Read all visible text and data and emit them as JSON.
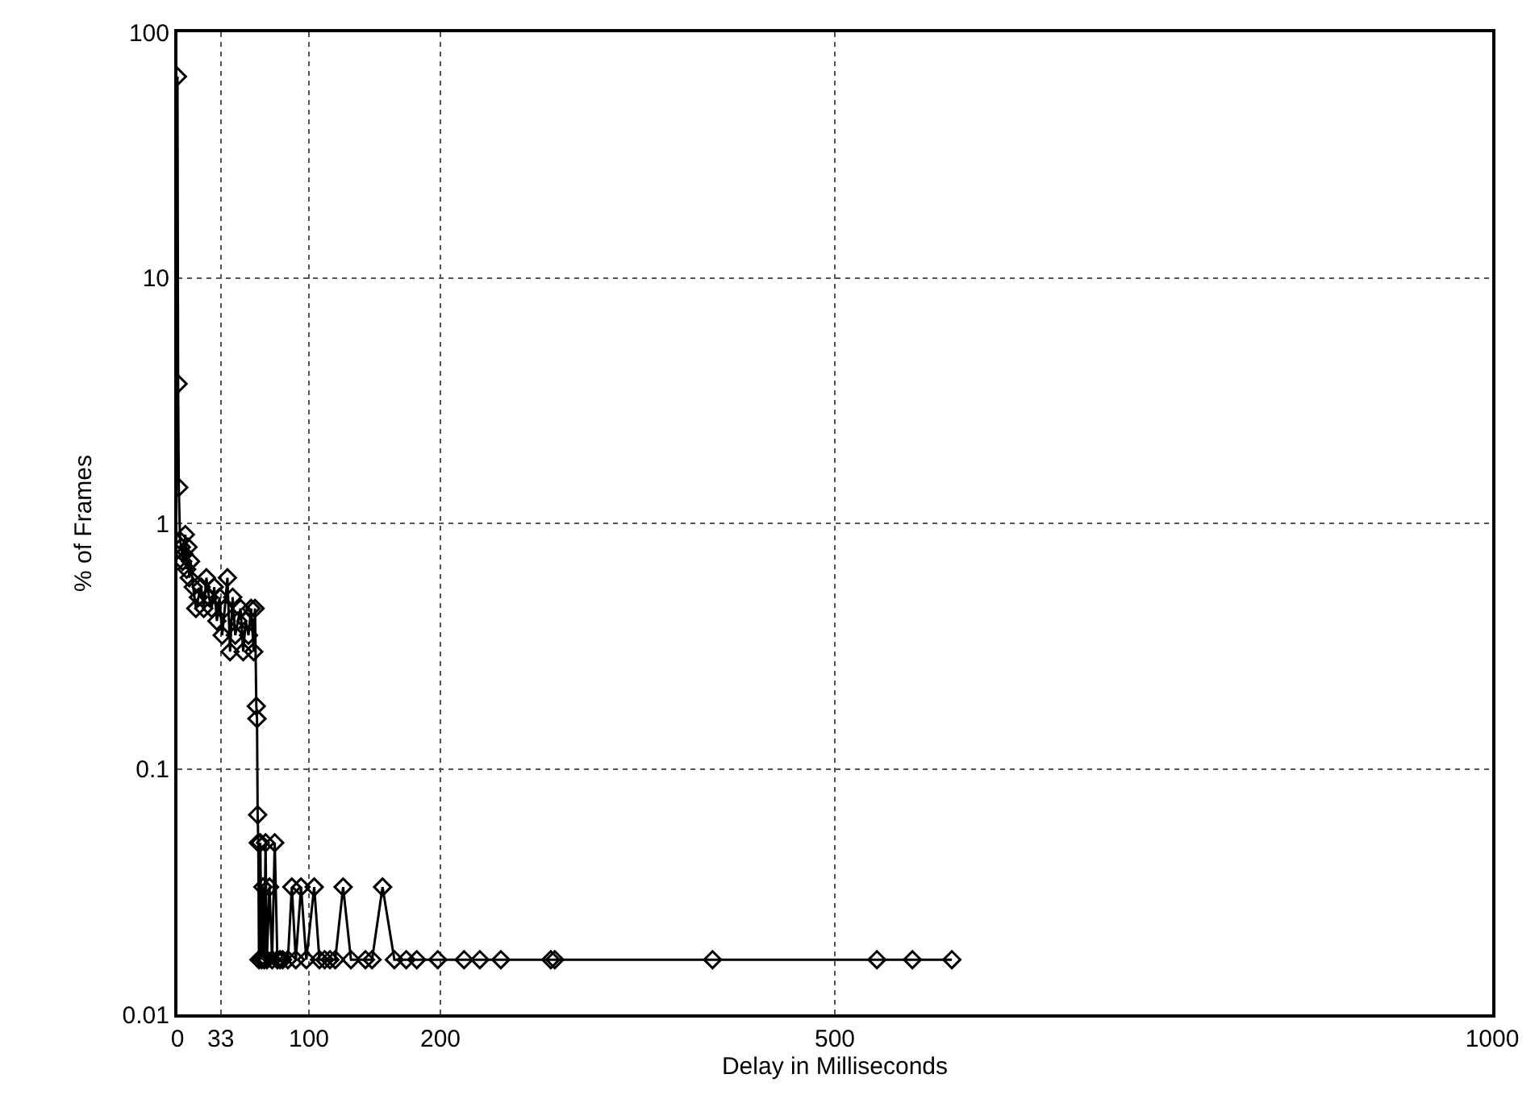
{
  "chart_data": {
    "type": "line",
    "xlabel": "Delay in Milliseconds",
    "ylabel": "% of Frames",
    "x": [
      0,
      0.5,
      1,
      2,
      3,
      4,
      5,
      6,
      7,
      8,
      9,
      10,
      12,
      14,
      16,
      18,
      20,
      22,
      24,
      26,
      28,
      30,
      32,
      34,
      36,
      38,
      40,
      42,
      44,
      46,
      48,
      50,
      52,
      54,
      56,
      58,
      59,
      60,
      60.5,
      61,
      61.5,
      62,
      63,
      64,
      65,
      66,
      67,
      68,
      70,
      72,
      74,
      76,
      78,
      80,
      84,
      87,
      90,
      94,
      98,
      104,
      108,
      112,
      116,
      120,
      126,
      132,
      143,
      148,
      156,
      165,
      174,
      182,
      198,
      218,
      230,
      246,
      284,
      287,
      407,
      532,
      559,
      589
    ],
    "series": [
      {
        "color": "#000000",
        "values": [
          66,
          3.7,
          1.4,
          0.85,
          0.8,
          0.7,
          0.75,
          0.9,
          0.65,
          0.8,
          0.6,
          0.7,
          0.55,
          0.45,
          0.5,
          0.55,
          0.45,
          0.6,
          0.5,
          0.45,
          0.55,
          0.4,
          0.5,
          0.35,
          0.45,
          0.6,
          0.3,
          0.5,
          0.35,
          0.4,
          0.45,
          0.3,
          0.4,
          0.35,
          0.45,
          0.3,
          0.45,
          0.18,
          0.16,
          0.065,
          0.05,
          0.0167,
          0.05,
          0.0167,
          0.033,
          0.0167,
          0.05,
          0.0167,
          0.033,
          0.0167,
          0.05,
          0.0167,
          0.0167,
          0.0167,
          0.0167,
          0.033,
          0.0167,
          0.033,
          0.0167,
          0.033,
          0.0167,
          0.0167,
          0.0167,
          0.0167,
          0.033,
          0.0167,
          0.0167,
          0.0167,
          0.033,
          0.0167,
          0.0167,
          0.0167,
          0.0167,
          0.0167,
          0.0167,
          0.0167,
          0.0167,
          0.0167,
          0.0167,
          0.0167,
          0.0167,
          0.0167
        ]
      }
    ],
    "xlim": [
      0,
      1000
    ],
    "xticks": [
      0,
      33,
      100,
      200,
      500,
      1000
    ],
    "ylim": [
      0.01,
      100
    ],
    "yticks": [
      0.01,
      0.1,
      1,
      10,
      100
    ],
    "log": "y",
    "grid": true,
    "marker": "diamond",
    "line_style": "solid"
  }
}
